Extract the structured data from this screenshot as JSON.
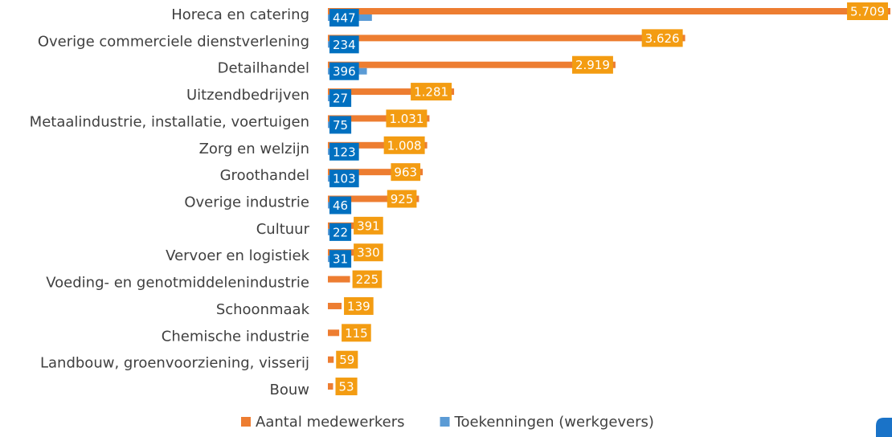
{
  "chart_data": {
    "type": "bar",
    "orientation": "horizontal",
    "categories": [
      "Horeca en catering",
      "Overige commerciele dienstverlening",
      "Detailhandel",
      "Uitzendbedrijven",
      "Metaalindustrie, installatie, voertuigen",
      "Zorg en welzijn ",
      "Groothandel",
      "Overige industrie",
      "Cultuur",
      "Vervoer en logistiek",
      "Voeding- en genotmiddelenindustrie",
      "Schoonmaak",
      "Chemische industrie",
      "Landbouw, groenvoorziening, visserij",
      "Bouw"
    ],
    "series": [
      {
        "name": "Aantal medewerkers",
        "color": "#ed7d31",
        "label_color": "#f39c12",
        "values": [
          5709,
          3626,
          2919,
          1281,
          1031,
          1008,
          963,
          925,
          391,
          330,
          225,
          139,
          115,
          59,
          53
        ],
        "value_labels": [
          "5.709",
          "3.626",
          "2.919",
          "1.281",
          "1.031",
          "1.008",
          "963",
          "925",
          "391",
          "330",
          "225",
          "139",
          "115",
          "59",
          "53"
        ]
      },
      {
        "name": "Toekenningen (werkgevers)",
        "color": "#5b9bd5",
        "label_color": "#0070c0",
        "values": [
          447,
          234,
          396,
          27,
          75,
          123,
          103,
          46,
          22,
          31,
          null,
          null,
          null,
          null,
          null
        ]
      }
    ],
    "legend": "bottom"
  }
}
